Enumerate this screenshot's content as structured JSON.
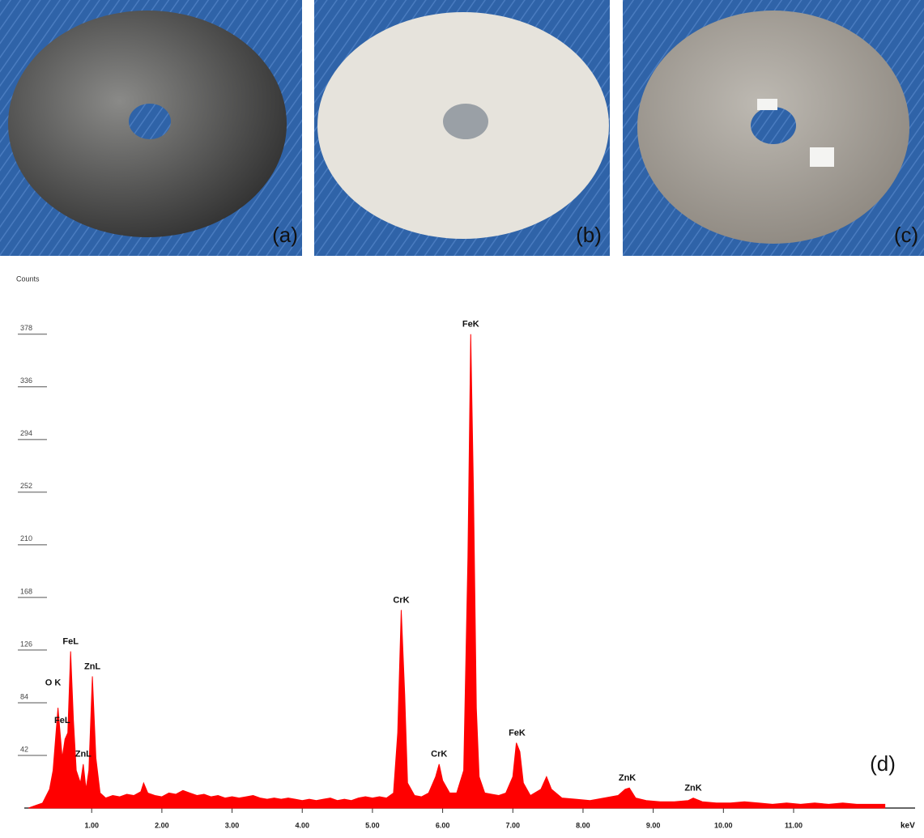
{
  "panels": [
    {
      "label": "(a)"
    },
    {
      "label": "(b)"
    },
    {
      "label": "(c)"
    }
  ],
  "chart_data": {
    "type": "area",
    "panel_label": "(d)",
    "y_axis_label": "Counts",
    "x_axis_label": "keV",
    "color": "#ff0000",
    "x": [
      0.1,
      0.2,
      0.3,
      0.4,
      0.45,
      0.52,
      0.58,
      0.62,
      0.66,
      0.7,
      0.74,
      0.78,
      0.84,
      0.88,
      0.92,
      0.96,
      1.01,
      1.06,
      1.12,
      1.2,
      1.3,
      1.4,
      1.5,
      1.6,
      1.7,
      1.74,
      1.8,
      1.9,
      2.0,
      2.1,
      2.2,
      2.3,
      2.4,
      2.5,
      2.6,
      2.7,
      2.8,
      2.9,
      3.0,
      3.1,
      3.2,
      3.3,
      3.4,
      3.5,
      3.6,
      3.7,
      3.8,
      3.9,
      4.0,
      4.1,
      4.2,
      4.3,
      4.4,
      4.5,
      4.6,
      4.7,
      4.8,
      4.9,
      5.0,
      5.1,
      5.2,
      5.3,
      5.36,
      5.41,
      5.46,
      5.5,
      5.6,
      5.7,
      5.8,
      5.9,
      5.95,
      6.0,
      6.1,
      6.2,
      6.3,
      6.36,
      6.4,
      6.44,
      6.48,
      6.52,
      6.6,
      6.7,
      6.8,
      6.9,
      7.0,
      7.05,
      7.1,
      7.15,
      7.25,
      7.4,
      7.48,
      7.55,
      7.7,
      7.9,
      8.1,
      8.3,
      8.5,
      8.6,
      8.66,
      8.75,
      8.9,
      9.1,
      9.3,
      9.5,
      9.57,
      9.7,
      9.9,
      10.1,
      10.3,
      10.5,
      10.7,
      10.9,
      11.1,
      11.3,
      11.5,
      11.7,
      11.9,
      12.1,
      12.3
    ],
    "values": [
      0,
      2,
      4,
      15,
      30,
      80,
      40,
      55,
      60,
      125,
      70,
      30,
      20,
      35,
      15,
      30,
      105,
      40,
      12,
      8,
      10,
      9,
      11,
      10,
      13,
      20,
      12,
      10,
      9,
      12,
      11,
      14,
      12,
      10,
      11,
      9,
      10,
      8,
      9,
      8,
      9,
      10,
      8,
      7,
      8,
      7,
      8,
      7,
      6,
      7,
      6,
      7,
      8,
      6,
      7,
      6,
      8,
      9,
      8,
      9,
      8,
      12,
      60,
      158,
      90,
      20,
      10,
      9,
      12,
      25,
      35,
      22,
      12,
      12,
      30,
      200,
      378,
      250,
      80,
      25,
      12,
      11,
      10,
      12,
      25,
      52,
      45,
      20,
      10,
      15,
      25,
      15,
      8,
      7,
      6,
      8,
      10,
      15,
      16,
      8,
      6,
      5,
      5,
      6,
      8,
      5,
      4,
      4,
      5,
      4,
      3,
      4,
      3,
      4,
      3,
      4,
      3,
      3,
      3
    ],
    "xlim": [
      0.04,
      12.5
    ],
    "ylim": [
      0,
      425
    ],
    "xticks": [
      {
        "value": 1,
        "label": "1.00"
      },
      {
        "value": 2,
        "label": "2.00"
      },
      {
        "value": 3,
        "label": "3.00"
      },
      {
        "value": 4,
        "label": "4.00"
      },
      {
        "value": 5,
        "label": "5.00"
      },
      {
        "value": 6,
        "label": "6.00"
      },
      {
        "value": 7,
        "label": "7.00"
      },
      {
        "value": 8,
        "label": "8.00"
      },
      {
        "value": 9,
        "label": "9.00"
      },
      {
        "value": 10,
        "label": "10.00"
      },
      {
        "value": 11,
        "label": "11.00"
      }
    ],
    "yticks": [
      42,
      84,
      126,
      168,
      210,
      252,
      294,
      336,
      378
    ],
    "annotations": [
      {
        "text": "O K",
        "x": 0.45,
        "y": 92
      },
      {
        "text": "FeL",
        "x": 0.7,
        "y": 125
      },
      {
        "text": "FeL",
        "x": 0.58,
        "y": 62
      },
      {
        "text": "ZnL",
        "x": 1.01,
        "y": 105
      },
      {
        "text": "ZnL",
        "x": 0.88,
        "y": 35
      },
      {
        "text": "CrK",
        "x": 5.41,
        "y": 158
      },
      {
        "text": "CrK",
        "x": 5.95,
        "y": 35
      },
      {
        "text": "FeK",
        "x": 6.4,
        "y": 378
      },
      {
        "text": "FeK",
        "x": 7.06,
        "y": 52
      },
      {
        "text": "ZnK",
        "x": 8.63,
        "y": 16
      },
      {
        "text": "ZnK",
        "x": 9.57,
        "y": 8
      }
    ]
  }
}
